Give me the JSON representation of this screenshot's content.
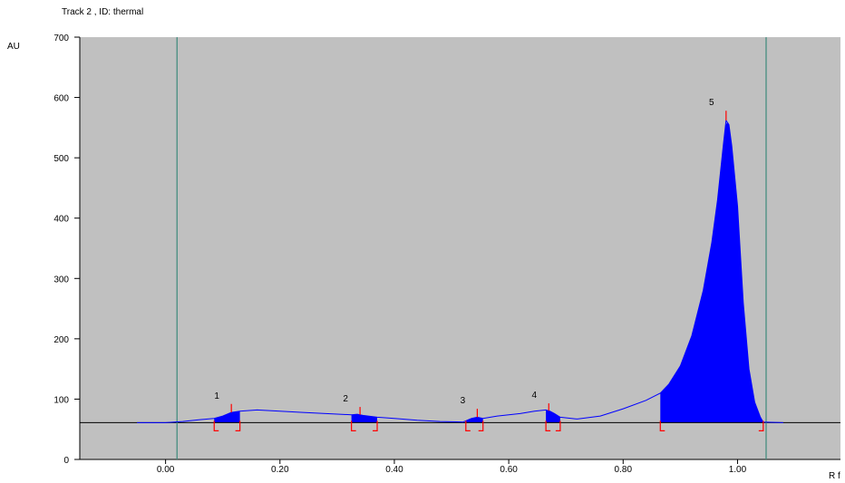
{
  "chart_data": {
    "type": "area",
    "title": "Track  2 , ID: thermal",
    "xlabel": "R f",
    "ylabel": "AU",
    "xlim": [
      -0.15,
      1.18
    ],
    "ylim": [
      0,
      700
    ],
    "x_ticks": [
      0.0,
      0.2,
      0.4,
      0.6,
      0.8,
      1.0
    ],
    "x_tick_labels": [
      "0.00",
      "0.20",
      "0.40",
      "0.60",
      "0.80",
      "1.00"
    ],
    "y_ticks": [
      0,
      100,
      200,
      300,
      400,
      500,
      600,
      700
    ],
    "y_tick_labels": [
      "0",
      "100",
      "200",
      "300",
      "400",
      "500",
      "600",
      "700"
    ],
    "baseline": 61,
    "front_lines": [
      0.02,
      1.05
    ],
    "colors": {
      "background": "#c0c0c0",
      "signal": "#0000ff",
      "baseline": "#000000",
      "markers": "#ff0000",
      "front_lines": "#3c8a7a"
    },
    "peaks": [
      {
        "label": "1",
        "rf": 0.115,
        "height": 92,
        "start": 0.085,
        "end": 0.13
      },
      {
        "label": "2",
        "rf": 0.34,
        "height": 87,
        "start": 0.325,
        "end": 0.37
      },
      {
        "label": "3",
        "rf": 0.545,
        "height": 84,
        "start": 0.525,
        "end": 0.555
      },
      {
        "label": "4",
        "rf": 0.67,
        "height": 93,
        "start": 0.665,
        "end": 0.69
      },
      {
        "label": "5",
        "rf": 0.98,
        "height": 578,
        "start": 0.865,
        "end": 1.045
      }
    ],
    "series": [
      {
        "x": [
          -0.05,
          0.0,
          0.03,
          0.06,
          0.085,
          0.1,
          0.115,
          0.13,
          0.16,
          0.2,
          0.24,
          0.28,
          0.325,
          0.335,
          0.345,
          0.37,
          0.4,
          0.44,
          0.48,
          0.52,
          0.535,
          0.545,
          0.555,
          0.58,
          0.62,
          0.645,
          0.665,
          0.672,
          0.68,
          0.69,
          0.72,
          0.76,
          0.8,
          0.84,
          0.865,
          0.88,
          0.9,
          0.92,
          0.94,
          0.955,
          0.965,
          0.975,
          0.98,
          0.985,
          0.99,
          1.0,
          1.01,
          1.02,
          1.03,
          1.04,
          1.045,
          1.08
        ],
        "y": [
          61,
          61,
          63,
          66,
          68,
          72,
          78,
          80,
          82,
          80,
          78,
          76,
          74,
          75,
          73,
          70,
          68,
          65,
          63,
          62,
          68,
          70,
          68,
          72,
          76,
          80,
          82,
          80,
          76,
          70,
          67,
          72,
          84,
          98,
          110,
          125,
          155,
          205,
          280,
          360,
          430,
          520,
          562,
          555,
          520,
          420,
          260,
          150,
          95,
          70,
          62,
          61
        ]
      }
    ]
  }
}
